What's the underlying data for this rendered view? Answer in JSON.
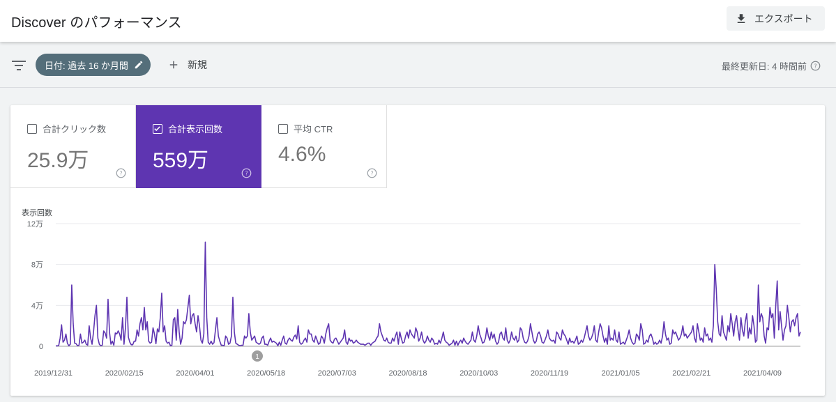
{
  "header": {
    "title": "Discover のパフォーマンス",
    "export_label": "エクスポート"
  },
  "filterbar": {
    "date_chip_label": "日付: 過去 16 か月間",
    "new_label": "新規",
    "last_updated": "最終更新日: 4 時間前"
  },
  "metrics": [
    {
      "label": "合計クリック数",
      "value": "25.9万",
      "checked": false
    },
    {
      "label": "合計表示回数",
      "value": "559万",
      "checked": true
    },
    {
      "label": "平均 CTR",
      "value": "4.6%",
      "checked": false
    }
  ],
  "colors": {
    "accent": "#5e35b1",
    "line": "#5e35b1",
    "chip": "#546e7a"
  },
  "annotation_marker": "1",
  "chart_data": {
    "type": "line",
    "ylabel": "表示回数",
    "ylim": [
      0,
      120000
    ],
    "ytick_labels": [
      "0",
      "4万",
      "8万",
      "12万"
    ],
    "ytick_values": [
      0,
      40000,
      80000,
      120000
    ],
    "xtick_labels": [
      "2019/12/31",
      "2020/02/15",
      "2020/04/01",
      "2020/05/18",
      "2020/07/03",
      "2020/08/18",
      "2020/10/03",
      "2020/11/19",
      "2021/01/05",
      "2021/02/21",
      "2021/04/09"
    ],
    "grid": true,
    "series": [
      {
        "values": [
          500,
          400,
          600,
          8000,
          21000,
          4000,
          6000,
          12000,
          3000,
          500,
          2000,
          60000,
          22000,
          3000,
          2500,
          500,
          1000,
          12000,
          3000,
          4000,
          6000,
          2000,
          1000,
          20000,
          8000,
          2000,
          14000,
          30000,
          40000,
          8000,
          2000,
          500,
          1000,
          15000,
          13000,
          8000,
          46000,
          14000,
          2000,
          5000,
          1000,
          13000,
          12000,
          15000,
          12000,
          6000,
          28000,
          2000,
          18000,
          48000,
          9000,
          4000,
          1500,
          1500,
          5000,
          5000,
          16000,
          10000,
          22000,
          28000,
          16000,
          38000,
          16000,
          24000,
          5000,
          3000,
          4000,
          18000,
          12000,
          2500,
          17000,
          14000,
          28000,
          52000,
          14000,
          20000,
          5000,
          3000,
          4000,
          500,
          1000,
          26000,
          28000,
          6000,
          36000,
          14000,
          2000,
          8000,
          24000,
          22000,
          26000,
          38000,
          50000,
          22000,
          30000,
          32000,
          22000,
          14000,
          30000,
          20000,
          6000,
          3000,
          12000,
          102000,
          28000,
          4000,
          2000,
          5000,
          2000,
          3500,
          16000,
          28000,
          10000,
          5000,
          1000,
          1000,
          500,
          10000,
          8000,
          2000,
          3000,
          10000,
          48000,
          14000,
          3000,
          2000,
          1000,
          500,
          1000,
          1000,
          10000,
          8000,
          10000,
          32000,
          14000,
          6000,
          8000,
          10000,
          4000,
          3000,
          2000,
          3000,
          8000,
          10000,
          2000,
          2000,
          1000,
          5000,
          8000,
          4000,
          5000,
          4000,
          3000,
          500,
          4000,
          1000,
          6000,
          10000,
          3000,
          2000,
          6000,
          8000,
          6000,
          5000,
          9000,
          11000,
          7000,
          20000,
          4000,
          2000,
          3000,
          6000,
          8000,
          4000,
          16000,
          12000,
          12000,
          6000,
          4000,
          10000,
          6000,
          2000,
          3000,
          10000,
          8000,
          3000,
          12000,
          18000,
          22000,
          6000,
          4000,
          3000,
          7000,
          8000,
          5000,
          2000,
          4000,
          6000,
          8000,
          16000,
          4000,
          2000,
          8000,
          5000,
          6000,
          3000,
          4000,
          6000,
          4000,
          3000,
          2000,
          2000,
          2000,
          1000,
          2000,
          3000,
          3000,
          1000,
          3000,
          4000,
          5000,
          8000,
          10000,
          22000,
          14000,
          10000,
          6000,
          5000,
          8000,
          4000,
          3000,
          3000,
          8000,
          5000,
          10000,
          14000,
          2000,
          14000,
          8000,
          3000,
          4000,
          10000,
          14000,
          8000,
          16000,
          12000,
          10000,
          8000,
          18000,
          14000,
          5000,
          8000,
          14000,
          6000,
          3000,
          5000,
          10000,
          6000,
          4000,
          8000,
          6000,
          2000,
          3000,
          2000,
          6000,
          3000,
          8000,
          14000,
          6000,
          4000,
          3000,
          1000,
          2000,
          3000,
          6000,
          1000,
          5000,
          1000,
          4000,
          6000,
          3000,
          8000,
          5000,
          3000,
          2000,
          4000,
          6000,
          14000,
          6000,
          4000,
          10000,
          20000,
          12000,
          8000,
          3000,
          4000,
          8000,
          18000,
          10000,
          6000,
          14000,
          8000,
          12000,
          5000,
          2000,
          4000,
          12000,
          14000,
          8000,
          6000,
          18000,
          6000,
          3000,
          6000,
          14000,
          8000,
          6000,
          10000,
          4000,
          6000,
          18000,
          16000,
          8000,
          4000,
          3000,
          5000,
          10000,
          22000,
          14000,
          6000,
          3000,
          5000,
          12000,
          14000,
          10000,
          4000,
          3000,
          6000,
          10000,
          16000,
          8000,
          6000,
          5000,
          6000,
          3000,
          14000,
          12000,
          8000,
          6000,
          16000,
          12000,
          10000,
          6000,
          2000,
          8000,
          4000,
          5000,
          3000,
          6000,
          10000,
          2000,
          3000,
          6000,
          4000,
          8000,
          14000,
          20000,
          10000,
          6000,
          8000,
          12000,
          20000,
          6000,
          4000,
          14000,
          22000,
          18000,
          10000,
          4000,
          8000,
          2000,
          20000,
          6000,
          8000,
          6000,
          16000,
          6000,
          4000,
          14000,
          2000,
          3000,
          4000,
          2000,
          6000,
          10000,
          16000,
          8000,
          4000,
          2000,
          3000,
          12000,
          10000,
          6000,
          22000,
          16000,
          2000,
          3000,
          6000,
          4000,
          10000,
          12000,
          8000,
          2000,
          4000,
          2000,
          3000,
          6000,
          3000,
          10000,
          24000,
          12000,
          6000,
          8000,
          2000,
          3000,
          16000,
          12000,
          14000,
          10000,
          6000,
          8000,
          12000,
          20000,
          10000,
          12000,
          8000,
          10000,
          12000,
          14000,
          20000,
          8000,
          4000,
          22000,
          14000,
          6000,
          8000,
          4000,
          18000,
          10000,
          12000,
          6000,
          8000,
          4000,
          20000,
          80000,
          56000,
          24000,
          12000,
          10000,
          30000,
          14000,
          10000,
          6000,
          20000,
          14000,
          32000,
          22000,
          10000,
          24000,
          30000,
          16000,
          6000,
          28000,
          16000,
          10000,
          24000,
          32000,
          8000,
          18000,
          12000,
          30000,
          20000,
          4000,
          6000,
          60000,
          24000,
          32000,
          28000,
          10000,
          3000,
          18000,
          16000,
          38000,
          28000,
          32000,
          8000,
          40000,
          64000,
          16000,
          34000,
          20000,
          6000,
          16000,
          20000,
          40000,
          28000,
          14000,
          24000,
          26000,
          20000,
          28000,
          32000,
          10000,
          14000
        ]
      }
    ]
  }
}
